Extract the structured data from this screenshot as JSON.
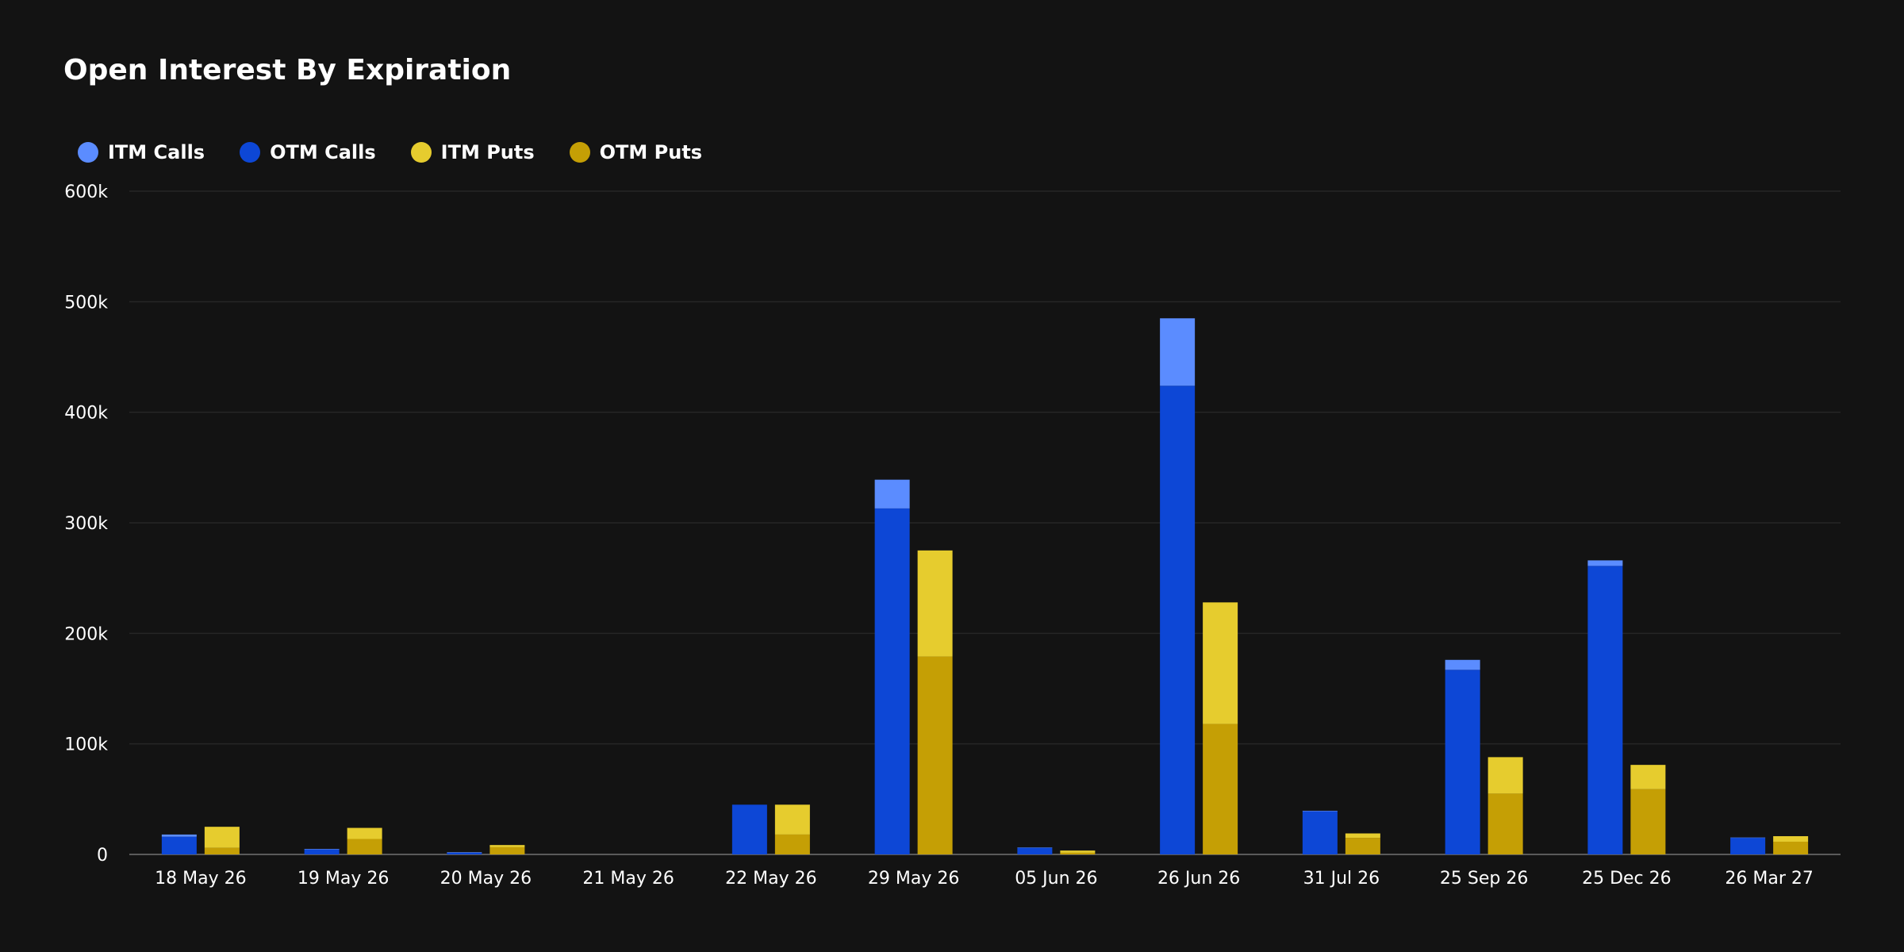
{
  "chart_data": {
    "type": "bar",
    "title": "Open Interest By Expiration",
    "xlabel": "",
    "ylabel": "",
    "ylim": [
      0,
      600000
    ],
    "yticks": [
      {
        "value": 0,
        "label": "0"
      },
      {
        "value": 100000,
        "label": "100k"
      },
      {
        "value": 200000,
        "label": "200k"
      },
      {
        "value": 300000,
        "label": "300k"
      },
      {
        "value": 400000,
        "label": "400k"
      },
      {
        "value": 500000,
        "label": "500k"
      },
      {
        "value": 600000,
        "label": "600k"
      }
    ],
    "grid": true,
    "legend_position": "top-left",
    "categories": [
      "18 May 26",
      "19 May 26",
      "20 May 26",
      "21 May 26",
      "22 May 26",
      "29 May 26",
      "05 Jun 26",
      "26 Jun 26",
      "31 Jul 26",
      "25 Sep 26",
      "25 Dec 26",
      "26 Mar 27"
    ],
    "stacks": [
      {
        "name": "Calls",
        "series": [
          "OTM Calls",
          "ITM Calls"
        ]
      },
      {
        "name": "Puts",
        "series": [
          "OTM Puts",
          "ITM Puts"
        ]
      }
    ],
    "series": [
      {
        "name": "ITM Calls",
        "color": "#5b8cff",
        "values": [
          2000,
          500,
          500,
          0,
          0,
          26000,
          300,
          61000,
          500,
          9000,
          5000,
          300
        ]
      },
      {
        "name": "OTM Calls",
        "color": "#0d47d6",
        "values": [
          16000,
          4500,
          1500,
          0,
          45000,
          313000,
          6000,
          424000,
          39000,
          167000,
          261000,
          15000
        ]
      },
      {
        "name": "ITM Puts",
        "color": "#e6cc2e",
        "values": [
          19000,
          10000,
          2000,
          0,
          27000,
          96000,
          2000,
          110000,
          4000,
          33000,
          22000,
          5000
        ]
      },
      {
        "name": "OTM Puts",
        "color": "#c59f05",
        "values": [
          6000,
          14000,
          6500,
          0,
          18000,
          179000,
          1500,
          118000,
          15000,
          55000,
          59000,
          11500
        ]
      }
    ]
  }
}
